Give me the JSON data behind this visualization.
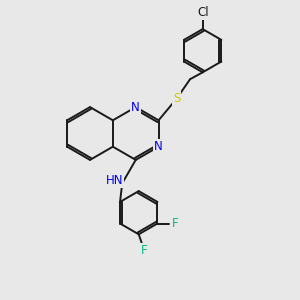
{
  "bg_color": "#e8e8e8",
  "bond_color": "#1a1a1a",
  "N_color": "#0000ee",
  "S_color": "#cccc00",
  "F_color": "#00bb88",
  "Cl_color": "#1a1a1a",
  "line_width": 1.4,
  "font_size": 8.5,
  "xlim": [
    0,
    10
  ],
  "ylim": [
    0,
    10
  ]
}
